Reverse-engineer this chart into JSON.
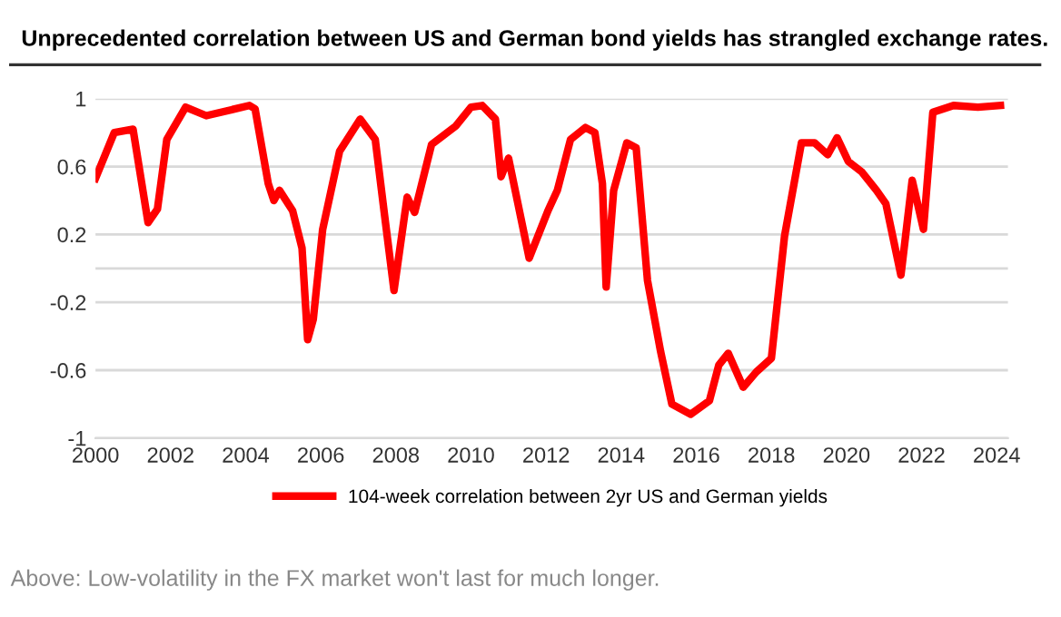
{
  "chart_data": {
    "type": "line",
    "title": "Unprecedented correlation between US and German bond yields has strangled exchange rates.",
    "x": [
      2000.0,
      2000.5,
      2001.0,
      2001.4,
      2001.65,
      2001.9,
      2002.4,
      2002.95,
      2004.1,
      2004.25,
      2004.6,
      2004.75,
      2004.9,
      2005.25,
      2005.5,
      2005.65,
      2005.8,
      2006.05,
      2006.5,
      2007.05,
      2007.45,
      2007.7,
      2007.95,
      2008.3,
      2008.5,
      2008.95,
      2009.6,
      2010.0,
      2010.3,
      2010.65,
      2010.8,
      2011.0,
      2011.55,
      2012.05,
      2012.3,
      2012.65,
      2013.05,
      2013.3,
      2013.5,
      2013.6,
      2013.8,
      2014.15,
      2014.4,
      2014.7,
      2015.05,
      2015.35,
      2015.85,
      2016.35,
      2016.6,
      2016.85,
      2017.25,
      2017.6,
      2018.0,
      2018.35,
      2018.8,
      2019.15,
      2019.5,
      2019.75,
      2020.05,
      2020.4,
      2020.8,
      2021.05,
      2021.45,
      2021.75,
      2022.05,
      2022.3,
      2022.85,
      2023.5,
      2024.1
    ],
    "series": [
      {
        "name": "104-week correlation between 2yr US and German yields",
        "color": "#ff0000",
        "values": [
          0.53,
          0.8,
          0.82,
          0.27,
          0.35,
          0.76,
          0.95,
          0.9,
          0.96,
          0.94,
          0.5,
          0.4,
          0.46,
          0.34,
          0.12,
          -0.42,
          -0.3,
          0.23,
          0.69,
          0.88,
          0.76,
          0.31,
          -0.13,
          0.42,
          0.33,
          0.73,
          0.84,
          0.95,
          0.96,
          0.88,
          0.54,
          0.65,
          0.06,
          0.34,
          0.46,
          0.76,
          0.83,
          0.8,
          0.5,
          -0.11,
          0.46,
          0.74,
          0.71,
          -0.07,
          -0.49,
          -0.8,
          -0.86,
          -0.78,
          -0.57,
          -0.5,
          -0.7,
          -0.61,
          -0.53,
          0.19,
          0.74,
          0.74,
          0.67,
          0.77,
          0.63,
          0.57,
          0.46,
          0.38,
          -0.04,
          0.52,
          0.23,
          0.92,
          0.96,
          0.95,
          0.96
        ]
      }
    ],
    "xlim": [
      2000,
      2024.3
    ],
    "xticks": [
      2000,
      2002,
      2004,
      2006,
      2008,
      2010,
      2012,
      2014,
      2016,
      2018,
      2020,
      2022,
      2024
    ],
    "ylim": [
      -1,
      1
    ],
    "yticks": [
      -1,
      -0.6,
      -0.2,
      {
        "value": 0,
        "label": null
      },
      0.2,
      0.6,
      1
    ],
    "grid": "y",
    "legend": "bottom",
    "marker": "none",
    "line_style": "solid",
    "annotations": [
      "Above: Low-volatility in the FX market won't last for much longer."
    ]
  }
}
